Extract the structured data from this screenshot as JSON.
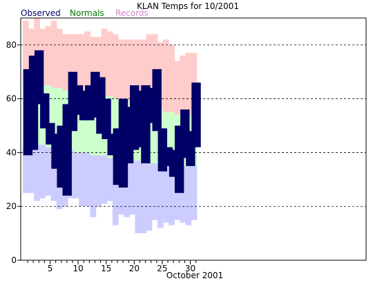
{
  "chart_data": {
    "type": "bar",
    "title": "KLAN Temps for 10/2001",
    "xlabel": "October 2001",
    "ylabel": "",
    "xlim": [
      1,
      31
    ],
    "ylim": [
      0,
      90
    ],
    "grid": true,
    "legend_placement": "top-left",
    "x_ticks": [
      5,
      10,
      15,
      20,
      25,
      30
    ],
    "y_ticks": [
      0,
      20,
      40,
      60,
      80
    ],
    "gridlines": [
      20,
      40,
      60,
      80
    ],
    "days": [
      1,
      2,
      3,
      4,
      5,
      6,
      7,
      8,
      9,
      10,
      11,
      12,
      13,
      14,
      15,
      16,
      17,
      18,
      19,
      20,
      21,
      22,
      23,
      24,
      25,
      26,
      27,
      28,
      29,
      30,
      31
    ],
    "legend": [
      {
        "label": "Observed",
        "color": "#000066"
      },
      {
        "label": "Normals",
        "color": "#007700"
      },
      {
        "label": "Records",
        "color": "#cc88cc"
      }
    ],
    "colors": {
      "observed": "#000066",
      "normals": "#ccffcc",
      "records_high": "#ffcccc",
      "records_low": "#ccccff"
    },
    "series": [
      {
        "name": "Observed",
        "component": "high",
        "values": [
          71,
          76,
          78,
          62,
          51,
          47,
          50,
          58,
          70,
          65,
          63,
          65,
          70,
          68,
          60,
          47,
          49,
          60,
          57,
          65,
          63,
          65,
          64,
          71,
          49,
          42,
          41,
          50,
          56,
          48,
          66
        ]
      },
      {
        "name": "Observed",
        "component": "low",
        "values": [
          39,
          41,
          58,
          49,
          43,
          34,
          27,
          24,
          48,
          54,
          52,
          52,
          53,
          47,
          45,
          39,
          28,
          27,
          36,
          41,
          42,
          36,
          51,
          48,
          33,
          35,
          31,
          25,
          38,
          35,
          42
        ]
      },
      {
        "name": "Normals",
        "component": "high",
        "values": [
          65,
          65,
          65,
          65,
          65,
          64,
          64,
          63,
          62,
          62,
          62,
          62,
          62,
          61,
          61,
          61,
          60,
          60,
          59,
          59,
          58,
          58,
          58,
          57,
          56,
          55,
          55,
          54,
          54,
          54,
          54
        ]
      },
      {
        "name": "Normals",
        "component": "low",
        "values": [
          42,
          42,
          43,
          43,
          42,
          42,
          42,
          42,
          41,
          40,
          40,
          40,
          39,
          39,
          39,
          38,
          38,
          38,
          37,
          37,
          37,
          36,
          36,
          36,
          35,
          35,
          35,
          35,
          35,
          35,
          35
        ]
      },
      {
        "name": "Records",
        "component": "high",
        "values": [
          89,
          86,
          90,
          86,
          87,
          89,
          86,
          84,
          84,
          84,
          84,
          85,
          83,
          83,
          86,
          85,
          84,
          82,
          82,
          82,
          82,
          82,
          84,
          84,
          81,
          82,
          80,
          74,
          76,
          77,
          77
        ]
      },
      {
        "name": "Records",
        "component": "low",
        "values": [
          25,
          25,
          22,
          23,
          24,
          22,
          19,
          20,
          23,
          23,
          20,
          20,
          16,
          20,
          21,
          22,
          13,
          17,
          16,
          17,
          10,
          10,
          11,
          15,
          12,
          14,
          13,
          15,
          14,
          13,
          15
        ]
      }
    ]
  }
}
